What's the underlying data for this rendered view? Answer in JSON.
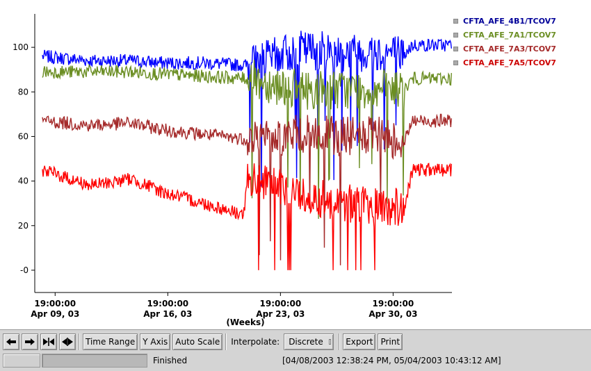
{
  "chart_data": {
    "type": "line",
    "xlabel": "(Weeks)",
    "ylabel": "",
    "x_range": [
      "2003-04-08T12:38:24",
      "2003-05-04T10:43:12"
    ],
    "ylim": [
      -10,
      115
    ],
    "y_ticks": [
      0,
      20,
      40,
      60,
      80,
      100
    ],
    "y_tick_labels": [
      "-0",
      "20",
      "40",
      "60",
      "80",
      "100"
    ],
    "x_ticks": [
      "2003-04-09T19:00:00",
      "2003-04-16T19:00:00",
      "2003-04-23T19:00:00",
      "2003-04-30T19:00:00"
    ],
    "x_tick_labels": [
      {
        "time": "19:00:00",
        "date": "Apr 09, 03"
      },
      {
        "time": "19:00:00",
        "date": "Apr 16, 03"
      },
      {
        "time": "19:00:00",
        "date": "Apr 23, 03"
      },
      {
        "time": "19:00:00",
        "date": "Apr 30, 03"
      }
    ],
    "grid": false,
    "legend_position": "right",
    "series": [
      {
        "name": "CFTA_AFE_4B1/TCOV7",
        "color": "#0000ff",
        "legend_color": "#000099",
        "x": [
          "2003-04-09T00:00",
          "2003-04-12T00:00",
          "2003-04-14T12:00",
          "2003-04-16T12:00",
          "2003-04-19T00:00",
          "2003-04-21T12:00",
          "2003-04-21T18:00",
          "2003-04-25T00:00",
          "2003-04-28T00:00",
          "2003-04-30T00:00",
          "2003-05-01T12:00",
          "2003-05-02T00:00",
          "2003-05-04T10:00"
        ],
        "values": [
          96,
          94,
          94,
          93,
          93,
          92,
          92,
          99,
          98,
          98,
          97,
          101,
          101
        ]
      },
      {
        "name": "CFTA_AFE_7A1/TCOV7",
        "color": "#6b8e23",
        "legend_color": "#6b8e23",
        "x": [
          "2003-04-09T00:00",
          "2003-04-12T00:00",
          "2003-04-14T12:00",
          "2003-04-16T12:00",
          "2003-04-19T00:00",
          "2003-04-21T12:00",
          "2003-04-21T18:00",
          "2003-04-25T00:00",
          "2003-04-28T00:00",
          "2003-04-30T00:00",
          "2003-05-01T12:00",
          "2003-05-02T00:00",
          "2003-05-04T10:00"
        ],
        "values": [
          89,
          89,
          89,
          88,
          87,
          86,
          86,
          81,
          81,
          81,
          81,
          86,
          86
        ]
      },
      {
        "name": "CFTA_AFE_7A3/TCOV7",
        "color": "#a52a2a",
        "legend_color": "#a52a2a",
        "x": [
          "2003-04-09T00:00",
          "2003-04-12T00:00",
          "2003-04-14T12:00",
          "2003-04-16T12:00",
          "2003-04-19T00:00",
          "2003-04-21T12:00",
          "2003-04-21T18:00",
          "2003-04-25T00:00",
          "2003-04-28T00:00",
          "2003-04-30T00:00",
          "2003-05-01T12:00",
          "2003-05-02T00:00",
          "2003-05-04T10:00"
        ],
        "values": [
          67,
          65,
          66,
          63,
          61,
          59,
          59,
          61,
          60,
          60,
          58,
          67,
          67
        ]
      },
      {
        "name": "CFTA_AFE_7A5/TCOV7",
        "color": "#ff0000",
        "legend_color": "#cc0000",
        "x": [
          "2003-04-09T00:00",
          "2003-04-12T00:00",
          "2003-04-14T12:00",
          "2003-04-16T12:00",
          "2003-04-19T00:00",
          "2003-04-21T12:00",
          "2003-04-21T18:00",
          "2003-04-25T00:00",
          "2003-04-28T00:00",
          "2003-04-30T00:00",
          "2003-05-01T12:00",
          "2003-05-02T00:00",
          "2003-05-04T10:00"
        ],
        "values": [
          45,
          38,
          41,
          35,
          30,
          25,
          40,
          34,
          30,
          28,
          28,
          45,
          45
        ]
      }
    ]
  },
  "toolbar": {
    "nav_icons": [
      "arrow-left-icon",
      "arrow-right-icon",
      "zoom-in-icon",
      "zoom-out-icon"
    ],
    "time_range_label": "Time Range",
    "y_axis_label": "Y Axis",
    "auto_scale_label": "Auto Scale",
    "interpolate_label": "Interpolate:",
    "interpolate_value": "Discrete",
    "export_label": "Export",
    "print_label": "Print"
  },
  "status": {
    "text": "Finished",
    "range_text": "[04/08/2003 12:38:24 PM, 05/04/2003 10:43:12 AM]"
  }
}
